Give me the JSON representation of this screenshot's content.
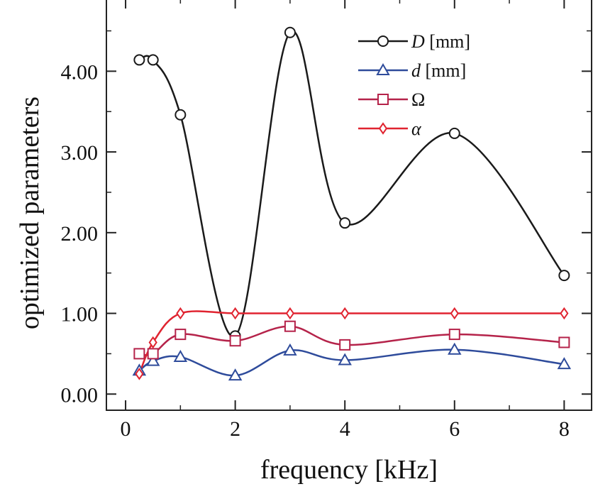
{
  "chart_data": {
    "type": "line",
    "title": "",
    "xlabel": "frequency [kHz]",
    "ylabel": "optimized parameters",
    "xlim": [
      -0.35,
      8.5
    ],
    "ylim": [
      -0.2,
      4.9
    ],
    "x_ticks": [
      0,
      2,
      4,
      6,
      8
    ],
    "x_tick_labels": [
      "0",
      "2",
      "4",
      "6",
      "8"
    ],
    "y_ticks": [
      0,
      1,
      2,
      3,
      4
    ],
    "y_tick_labels": [
      "0.00",
      "1.00",
      "2.00",
      "3.00",
      "4.00"
    ],
    "grid": false,
    "legend_position": "top-right",
    "series": [
      {
        "name": "D [mm]",
        "name_symbol": "D",
        "name_unit": " [mm]",
        "color": "#1a1a1a",
        "marker": "circle",
        "x": [
          0.25,
          0.5,
          1,
          2,
          3,
          4,
          6,
          8
        ],
        "y": [
          4.14,
          4.14,
          3.46,
          0.72,
          4.48,
          2.12,
          3.23,
          1.47
        ]
      },
      {
        "name": "d [mm]",
        "name_symbol": "d",
        "name_unit": " [mm]",
        "color": "#2e4b9b",
        "marker": "triangle",
        "x": [
          0.25,
          0.5,
          1,
          2,
          3,
          4,
          6,
          8
        ],
        "y": [
          0.29,
          0.41,
          0.46,
          0.23,
          0.54,
          0.42,
          0.55,
          0.37
        ]
      },
      {
        "name": "Ω",
        "name_symbol": "Ω",
        "name_unit": "",
        "color": "#b5234a",
        "marker": "square",
        "x": [
          0.25,
          0.5,
          1,
          2,
          3,
          4,
          6,
          8
        ],
        "y": [
          0.5,
          0.5,
          0.74,
          0.66,
          0.84,
          0.61,
          0.74,
          0.64
        ]
      },
      {
        "name": "α",
        "name_symbol": "α",
        "name_unit": "",
        "color": "#e02430",
        "marker": "diamond",
        "x": [
          0.25,
          0.5,
          1,
          2,
          3,
          4,
          6,
          8
        ],
        "y": [
          0.25,
          0.64,
          1.0,
          1.0,
          1.0,
          1.0,
          1.0,
          1.0
        ]
      }
    ]
  }
}
